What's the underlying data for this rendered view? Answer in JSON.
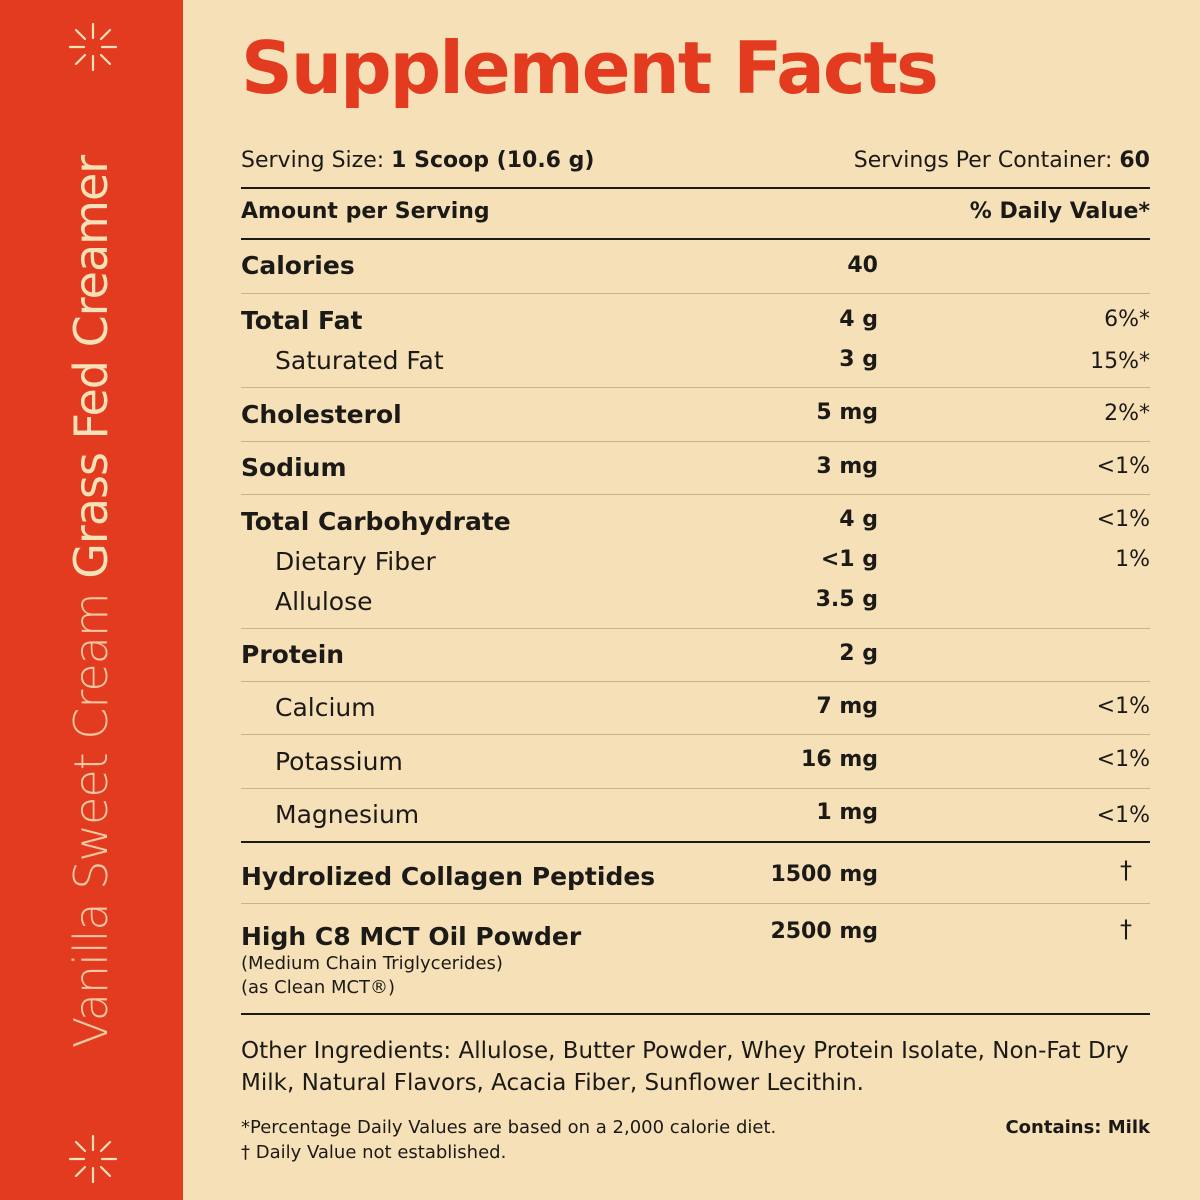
{
  "sidebar": {
    "text_light": "Vanilla Sweet Cream",
    "text_bold": "Grass Fed Creamer"
  },
  "title": "Supplement Facts",
  "serving": {
    "size_label": "Serving Size:",
    "size_value": "1 Scoop (10.6 g)",
    "per_container_label": "Servings Per Container:",
    "per_container_value": "60"
  },
  "header": {
    "amount_label": "Amount per Serving",
    "dv_label": "% Daily Value*"
  },
  "nutrients": [
    {
      "name": "Calories",
      "amount": "40",
      "dv": ""
    },
    {
      "name": "Total Fat",
      "amount": "4 g",
      "dv": "6%*"
    },
    {
      "name": "Saturated Fat",
      "amount": "3 g",
      "dv": "15%*"
    },
    {
      "name": "Cholesterol",
      "amount": "5 mg",
      "dv": "2%*"
    },
    {
      "name": "Sodium",
      "amount": "3 mg",
      "dv": "<1%"
    },
    {
      "name": "Total Carbohydrate",
      "amount": "4 g",
      "dv": "<1%"
    },
    {
      "name": "Dietary Fiber",
      "amount": "<1 g",
      "dv": "1%"
    },
    {
      "name": "Allulose",
      "amount": "3.5 g",
      "dv": ""
    },
    {
      "name": "Protein",
      "amount": "2 g",
      "dv": ""
    },
    {
      "name": "Calcium",
      "amount": "7 mg",
      "dv": "<1%"
    },
    {
      "name": "Potassium",
      "amount": "16 mg",
      "dv": "<1%"
    },
    {
      "name": "Magnesium",
      "amount": "1 mg",
      "dv": "<1%"
    },
    {
      "name": "Hydrolized Collagen Peptides",
      "amount": "1500 mg",
      "dv": "†"
    },
    {
      "name": "High C8 MCT Oil Powder",
      "amount": "2500 mg",
      "dv": "†",
      "note1": "(Medium Chain Triglycerides)",
      "note2": "(as Clean MCT®)"
    }
  ],
  "other_ingredients": "Other Ingredients: Allulose, Butter Powder, Whey Protein Isolate, Non-Fat Dry Milk, Natural Flavors, Acacia Fiber, Sunflower Lecithin.",
  "footnotes": {
    "percent_note": "*Percentage Daily Values are based on a 2,000 calorie diet.",
    "dagger_note": "† Daily Value not established.",
    "contains": "Contains: Milk"
  },
  "colors": {
    "brand_red": "#e23b1f",
    "background": "#f6e0b8",
    "text": "#1c1a17"
  }
}
